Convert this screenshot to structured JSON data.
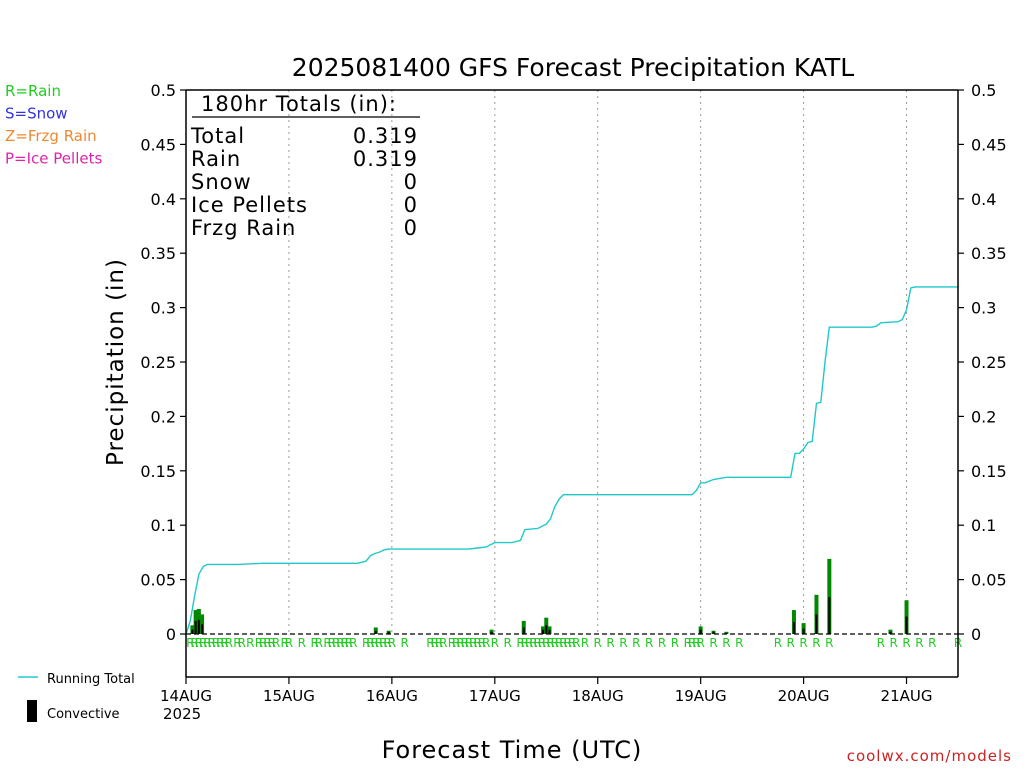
{
  "chart_data": {
    "type": "line",
    "title": "2025081400 GFS Forecast Precipitation KATL",
    "xlabel": "Forecast Time (UTC)",
    "ylabel": "Precipitation (in)",
    "ylim": [
      0,
      0.5
    ],
    "y_ticks": [
      "0",
      "0.05",
      "0.1",
      "0.15",
      "0.2",
      "0.25",
      "0.3",
      "0.35",
      "0.4",
      "0.45",
      "0.5"
    ],
    "x_ticks": [
      {
        "hour": 0,
        "label": "14AUG"
      },
      {
        "hour": 24,
        "label": "15AUG"
      },
      {
        "hour": 48,
        "label": "16AUG"
      },
      {
        "hour": 72,
        "label": "17AUG"
      },
      {
        "hour": 96,
        "label": "18AUG"
      },
      {
        "hour": 120,
        "label": "19AUG"
      },
      {
        "hour": 144,
        "label": "20AUG"
      },
      {
        "hour": 168,
        "label": "21AUG"
      }
    ],
    "x_year_label": "2025",
    "xlim_hours": [
      0,
      180
    ],
    "grid": "vertical-dotted",
    "legend_types": [
      {
        "label": "R=Rain",
        "color": "#22cc22"
      },
      {
        "label": "S=Snow",
        "color": "#3333dd"
      },
      {
        "label": "Z=Frzg Rain",
        "color": "#ee8833"
      },
      {
        "label": "P=Ice Pellets",
        "color": "#dd22aa"
      }
    ],
    "legend_series": [
      {
        "label": "Running Total",
        "color": "#22c8c8",
        "kind": "line"
      },
      {
        "label": "Convective",
        "color": "#000000",
        "kind": "bar"
      }
    ],
    "totals": {
      "heading": "180hr Totals (in):",
      "rows": [
        {
          "label": "Total",
          "value": "0.319"
        },
        {
          "label": "Rain",
          "value": "0.319"
        },
        {
          "label": "Snow",
          "value": "0"
        },
        {
          "label": "Ice Pellets",
          "value": "0"
        },
        {
          "label": "Frzg Rain",
          "value": "0"
        }
      ]
    },
    "running_total": {
      "color": "#22c8c8",
      "x": [
        0,
        1,
        2,
        3,
        4,
        5,
        7,
        12,
        18,
        24,
        30,
        36,
        40,
        42,
        43,
        44,
        45,
        46,
        47,
        48,
        52,
        60,
        66,
        68,
        70,
        72,
        76,
        78,
        79,
        82,
        83,
        84,
        85,
        86,
        87,
        88,
        90,
        96,
        108,
        118,
        119,
        120,
        121,
        123,
        126,
        132,
        138,
        141,
        142,
        143,
        144,
        145,
        146,
        147,
        148,
        149,
        150,
        156,
        160,
        161,
        162,
        166,
        167,
        168,
        169,
        170,
        180
      ],
      "y": [
        0,
        0.012,
        0.035,
        0.055,
        0.062,
        0.064,
        0.064,
        0.064,
        0.065,
        0.065,
        0.065,
        0.065,
        0.065,
        0.067,
        0.072,
        0.074,
        0.075,
        0.077,
        0.078,
        0.078,
        0.078,
        0.078,
        0.078,
        0.079,
        0.08,
        0.084,
        0.084,
        0.086,
        0.096,
        0.097,
        0.099,
        0.101,
        0.106,
        0.117,
        0.124,
        0.128,
        0.128,
        0.128,
        0.128,
        0.128,
        0.132,
        0.139,
        0.139,
        0.142,
        0.144,
        0.144,
        0.144,
        0.144,
        0.166,
        0.166,
        0.17,
        0.176,
        0.177,
        0.212,
        0.213,
        0.25,
        0.282,
        0.282,
        0.282,
        0.283,
        0.286,
        0.287,
        0.289,
        0.298,
        0.318,
        0.319,
        0.319
      ]
    },
    "precip_bars": {
      "color": "#008800",
      "x": [
        1.5,
        2.25,
        3.0,
        3.75,
        44.25,
        47.25,
        71.25,
        78.75,
        83.25,
        84.0,
        84.75,
        120.0,
        123.0,
        126.0,
        141.75,
        144.0,
        147.0,
        150.0,
        164.25,
        168.0
      ],
      "y": [
        0.008,
        0.022,
        0.023,
        0.018,
        0.006,
        0.003,
        0.004,
        0.012,
        0.007,
        0.015,
        0.007,
        0.007,
        0.003,
        0.002,
        0.022,
        0.01,
        0.036,
        0.069,
        0.004,
        0.031
      ]
    },
    "convective_bars": {
      "color": "#000000",
      "x": [
        1.5,
        2.25,
        3.0,
        3.75,
        44.25,
        47.25,
        71.25,
        78.75,
        83.25,
        84.0,
        84.75,
        120.0,
        123.0,
        126.0,
        141.75,
        144.0,
        147.0,
        150.0,
        164.25,
        168.0
      ],
      "y": [
        0.004,
        0.012,
        0.013,
        0.009,
        0.003,
        0.002,
        0.002,
        0.006,
        0.004,
        0.008,
        0.004,
        0.004,
        0.002,
        0.001,
        0.011,
        0.005,
        0.018,
        0.034,
        0.002,
        0.016
      ]
    },
    "type_markers": {
      "letter": "R",
      "color": "#22cc22",
      "hours": [
        1,
        2,
        3,
        4,
        5,
        6,
        7,
        8,
        9,
        10,
        12,
        13,
        15,
        17,
        18,
        19,
        20,
        21,
        23,
        24,
        27,
        30,
        31,
        33,
        34,
        35,
        36,
        37,
        38,
        39,
        42,
        43,
        44,
        45,
        46,
        47,
        48,
        51,
        57,
        58,
        59,
        60,
        62,
        63,
        64,
        65,
        66,
        67,
        68,
        69,
        70,
        72,
        75,
        78,
        79,
        80,
        81,
        82,
        83,
        84,
        85,
        86,
        87,
        88,
        89,
        90,
        91,
        93,
        96,
        99,
        102,
        105,
        108,
        111,
        114,
        117,
        118,
        119,
        120,
        123,
        126,
        129,
        138,
        141,
        144,
        147,
        150,
        162,
        165,
        168,
        171,
        174,
        180
      ]
    },
    "watermark": "coolwx.com/models"
  }
}
